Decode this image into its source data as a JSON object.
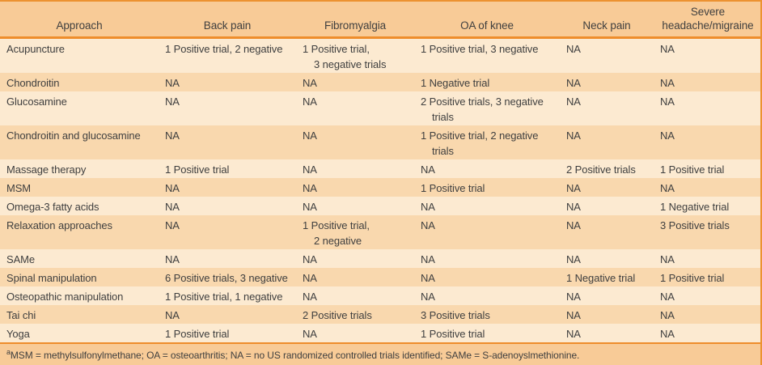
{
  "table": {
    "columns": [
      {
        "label": "Approach"
      },
      {
        "label": "Back pain"
      },
      {
        "label": "Fibromyalgia"
      },
      {
        "label": "OA of knee"
      },
      {
        "label": "Neck pain"
      },
      {
        "label": "Severe headache/migraine"
      }
    ],
    "rows": [
      {
        "approach": "Acupuncture",
        "cells": [
          [
            "1 Positive trial, 2 negative"
          ],
          [
            "1 Positive trial,",
            "3 negative trials"
          ],
          [
            "1 Positive trial, 3 negative"
          ],
          [
            "NA"
          ],
          [
            "NA"
          ]
        ]
      },
      {
        "approach": "Chondroitin",
        "cells": [
          [
            "NA"
          ],
          [
            "NA"
          ],
          [
            "1 Negative trial"
          ],
          [
            "NA"
          ],
          [
            "NA"
          ]
        ]
      },
      {
        "approach": "Glucosamine",
        "cells": [
          [
            "NA"
          ],
          [
            "NA"
          ],
          [
            "2 Positive trials, 3 negative",
            "trials"
          ],
          [
            "NA"
          ],
          [
            "NA"
          ]
        ]
      },
      {
        "approach": "Chondroitin and glucosamine",
        "cells": [
          [
            "NA"
          ],
          [
            "NA"
          ],
          [
            "1 Positive trial, 2 negative",
            "trials"
          ],
          [
            "NA"
          ],
          [
            "NA"
          ]
        ]
      },
      {
        "approach": "Massage therapy",
        "cells": [
          [
            "1 Positive trial"
          ],
          [
            "NA"
          ],
          [
            "NA"
          ],
          [
            "2 Positive trials"
          ],
          [
            "1 Positive trial"
          ]
        ]
      },
      {
        "approach": "MSM",
        "cells": [
          [
            "NA"
          ],
          [
            "NA"
          ],
          [
            "1 Positive trial"
          ],
          [
            "NA"
          ],
          [
            "NA"
          ]
        ]
      },
      {
        "approach": "Omega-3 fatty acids",
        "cells": [
          [
            "NA"
          ],
          [
            "NA"
          ],
          [
            "NA"
          ],
          [
            "NA"
          ],
          [
            "1 Negative trial"
          ]
        ]
      },
      {
        "approach": "Relaxation approaches",
        "cells": [
          [
            "NA"
          ],
          [
            "1 Positive trial,",
            "2 negative"
          ],
          [
            "NA"
          ],
          [
            "NA"
          ],
          [
            "3 Positive trials"
          ]
        ]
      },
      {
        "approach": "SAMe",
        "cells": [
          [
            "NA"
          ],
          [
            "NA"
          ],
          [
            "NA"
          ],
          [
            "NA"
          ],
          [
            "NA"
          ]
        ]
      },
      {
        "approach": "Spinal manipulation",
        "cells": [
          [
            "6 Positive trials, 3 negative"
          ],
          [
            "NA"
          ],
          [
            "NA"
          ],
          [
            "1 Negative trial"
          ],
          [
            "1 Positive trial"
          ]
        ]
      },
      {
        "approach": "Osteopathic manipulation",
        "cells": [
          [
            "1 Positive trial, 1 negative"
          ],
          [
            "NA"
          ],
          [
            "NA"
          ],
          [
            "NA"
          ],
          [
            "NA"
          ]
        ]
      },
      {
        "approach": "Tai chi",
        "cells": [
          [
            "NA"
          ],
          [
            "2 Positive trials"
          ],
          [
            "3 Positive trials"
          ],
          [
            "NA"
          ],
          [
            "NA"
          ]
        ]
      },
      {
        "approach": "Yoga",
        "cells": [
          [
            "1 Positive trial"
          ],
          [
            "NA"
          ],
          [
            "1 Positive trial"
          ],
          [
            "NA"
          ],
          [
            "NA"
          ]
        ]
      }
    ],
    "footnote": {
      "marker": "a",
      "text": "MSM = methylsulfonylmethane; OA = osteoarthritis; NA = no US randomized controlled trials identified; SAMe = S-adenoyslmethionine."
    }
  },
  "colors": {
    "header_bg": "#F8CB97",
    "row_light": "#FCEAD1",
    "row_dark": "#F9D8AE",
    "rule": "#EE8D2B",
    "rule_dark": "#EC9231",
    "text": "#3F3F3F"
  }
}
